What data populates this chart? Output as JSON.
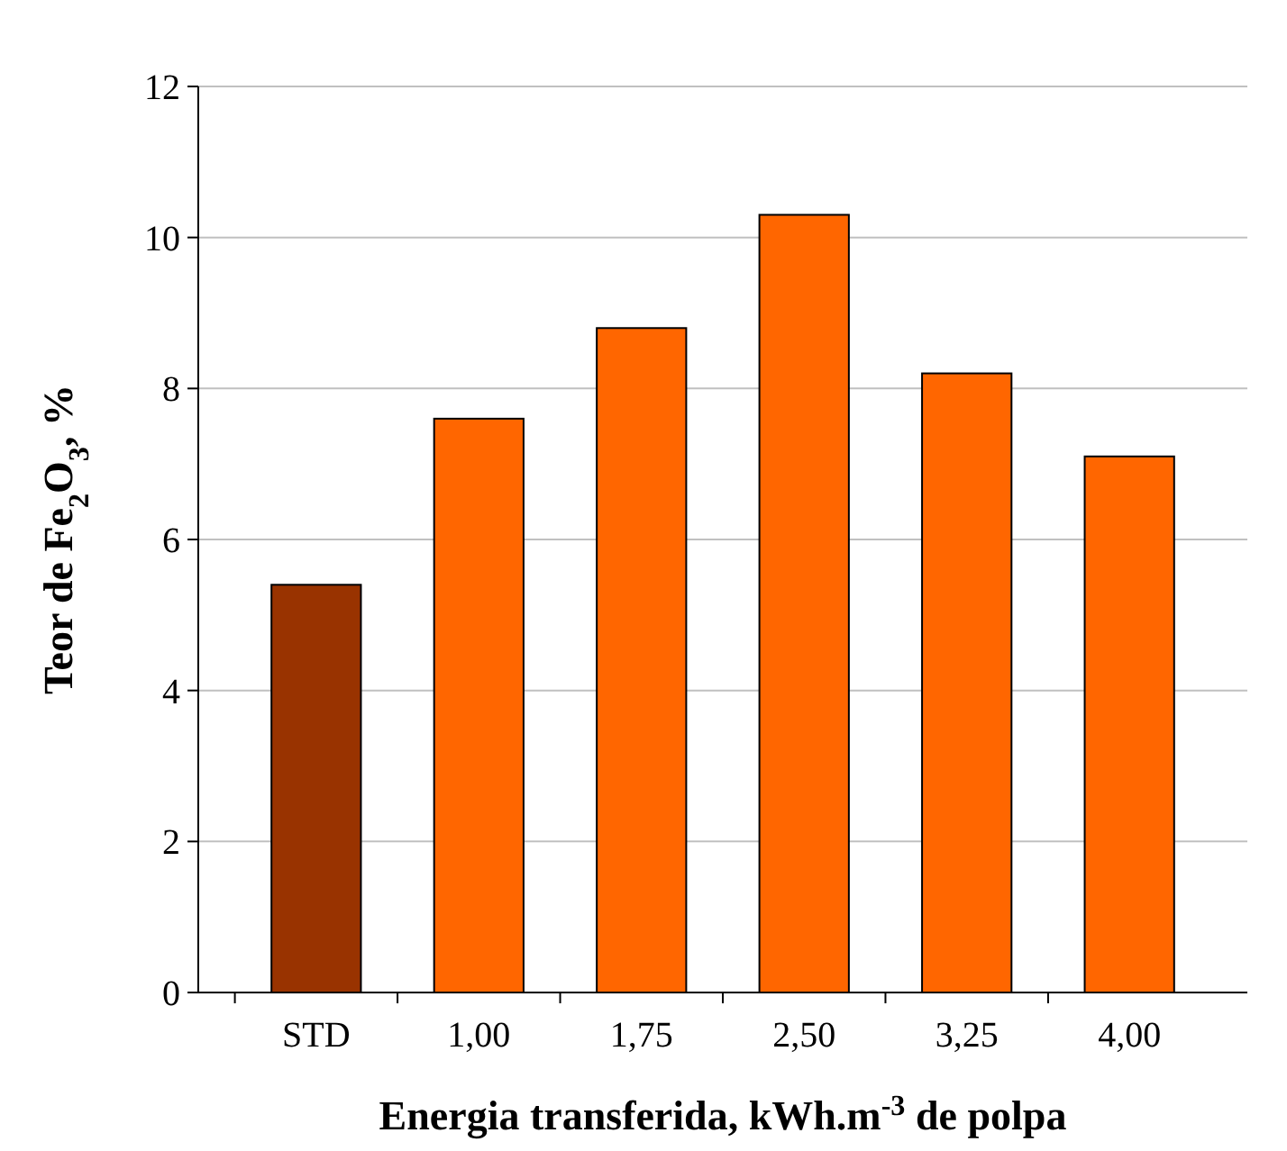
{
  "chart_data": {
    "type": "bar",
    "xlabel": "Energia transferida, kWh.m$^{-3}$ de polpa",
    "ylabel": "Teor de Fe$_{2}$O$_{3}$, %",
    "categories": [
      "STD",
      "1,00",
      "1,75",
      "2,50",
      "3,25",
      "4,00"
    ],
    "values": [
      5.4,
      7.6,
      8.8,
      10.3,
      8.2,
      7.1
    ],
    "colors": [
      "#993300",
      "#ff6600",
      "#ff6600",
      "#ff6600",
      "#ff6600",
      "#ff6600"
    ],
    "ylim": [
      0,
      12
    ],
    "yticks": [
      0,
      2,
      4,
      6,
      8,
      10,
      12
    ],
    "grid": "y"
  }
}
